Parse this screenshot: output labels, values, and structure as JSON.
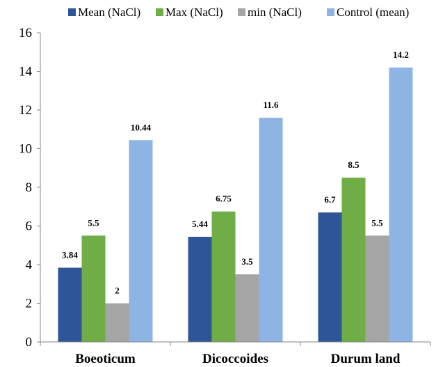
{
  "chart_data": {
    "type": "bar",
    "categories": [
      "Boeoticum",
      "Dicoccoides",
      "Durum land"
    ],
    "series": [
      {
        "name": "Mean (NaCl)",
        "color": "#2e5597",
        "values": [
          3.84,
          5.44,
          6.7
        ],
        "labels": [
          "3.84",
          "5.44",
          "6.7"
        ]
      },
      {
        "name": "Max (NaCl)",
        "color": "#70ad47",
        "values": [
          5.5,
          6.75,
          8.5
        ],
        "labels": [
          "5.5",
          "6.75",
          "8.5"
        ]
      },
      {
        "name": "min (NaCl)",
        "color": "#a5a5a5",
        "values": [
          2,
          3.5,
          5.5
        ],
        "labels": [
          "2",
          "3.5",
          "5.5"
        ]
      },
      {
        "name": "Control (mean)",
        "color": "#8eb4e3",
        "values": [
          10.44,
          11.6,
          14.2
        ],
        "labels": [
          "10.44",
          "11.6",
          "14.2"
        ]
      }
    ],
    "ylim": [
      0,
      16
    ],
    "yticks": [
      0,
      2,
      4,
      6,
      8,
      10,
      12,
      14,
      16
    ],
    "grid": false,
    "legend": "top"
  }
}
